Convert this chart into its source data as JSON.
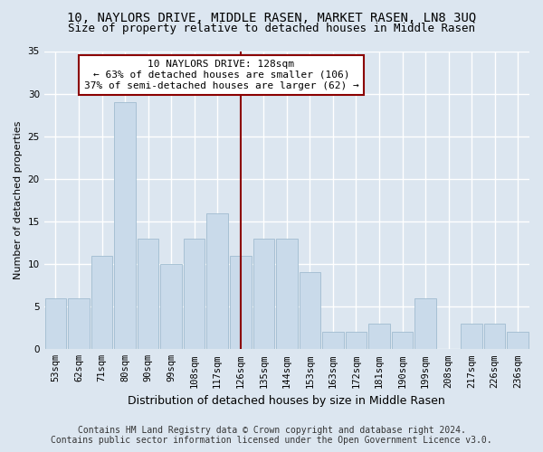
{
  "title": "10, NAYLORS DRIVE, MIDDLE RASEN, MARKET RASEN, LN8 3UQ",
  "subtitle": "Size of property relative to detached houses in Middle Rasen",
  "xlabel": "Distribution of detached houses by size in Middle Rasen",
  "ylabel": "Number of detached properties",
  "categories": [
    "53sqm",
    "62sqm",
    "71sqm",
    "80sqm",
    "90sqm",
    "99sqm",
    "108sqm",
    "117sqm",
    "126sqm",
    "135sqm",
    "144sqm",
    "153sqm",
    "163sqm",
    "172sqm",
    "181sqm",
    "190sqm",
    "199sqm",
    "208sqm",
    "217sqm",
    "226sqm",
    "236sqm"
  ],
  "values": [
    6,
    6,
    11,
    29,
    13,
    10,
    13,
    16,
    11,
    13,
    13,
    9,
    2,
    2,
    3,
    2,
    6,
    0,
    3,
    3,
    2
  ],
  "bar_color": "#c9daea",
  "bar_edge_color": "#a0bcd0",
  "vline_index": 8,
  "vline_color": "#8b0000",
  "annotation_line1": "10 NAYLORS DRIVE: 128sqm",
  "annotation_line2": "← 63% of detached houses are smaller (106)",
  "annotation_line3": "37% of semi-detached houses are larger (62) →",
  "annotation_box_color": "#ffffff",
  "annotation_box_edge": "#8b0000",
  "ylim": [
    0,
    35
  ],
  "yticks": [
    0,
    5,
    10,
    15,
    20,
    25,
    30,
    35
  ],
  "footer_line1": "Contains HM Land Registry data © Crown copyright and database right 2024.",
  "footer_line2": "Contains public sector information licensed under the Open Government Licence v3.0.",
  "background_color": "#dce6f0",
  "plot_bg_color": "#dce6f0",
  "grid_color": "#ffffff",
  "title_fontsize": 10,
  "subtitle_fontsize": 9,
  "xlabel_fontsize": 9,
  "ylabel_fontsize": 8,
  "tick_fontsize": 7.5,
  "annotation_fontsize": 8,
  "footer_fontsize": 7
}
